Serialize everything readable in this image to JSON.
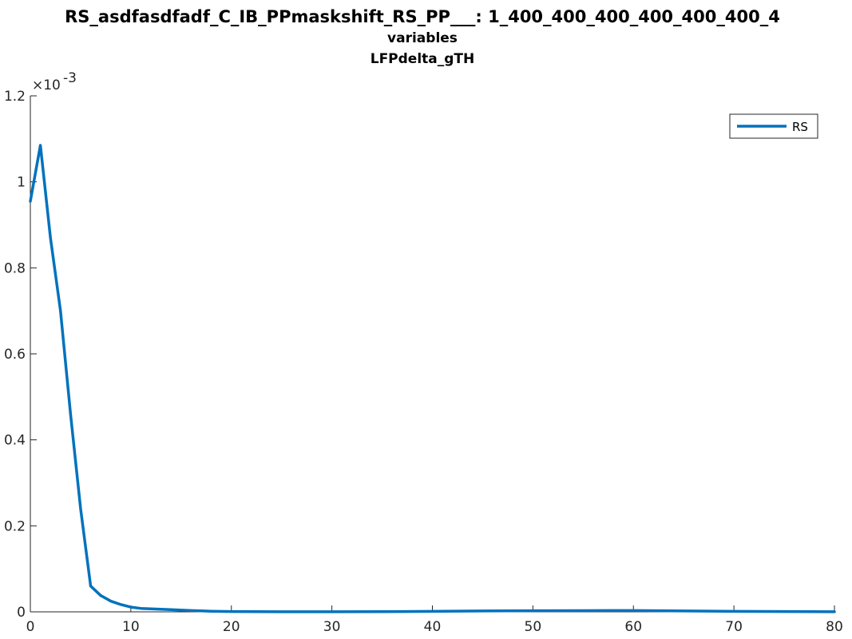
{
  "chart_data": {
    "type": "line",
    "title": [
      "RS_asdfasdfadf_C_IB_PPmaskshift_RS_PP___: 1_400_400_400_400_400_400_4",
      "variables",
      "LFPdelta_gTH"
    ],
    "xlabel": "",
    "ylabel": "",
    "xlim": [
      0,
      80
    ],
    "ylim": [
      0,
      0.0012
    ],
    "y_exponent_label": "×10",
    "y_exponent_power": "-3",
    "x_ticks": [
      0,
      10,
      20,
      30,
      40,
      50,
      60,
      70,
      80
    ],
    "x_tick_labels": [
      "0",
      "10",
      "20",
      "30",
      "40",
      "50",
      "60",
      "70",
      "80"
    ],
    "y_ticks": [
      0,
      0.0002,
      0.0004,
      0.0006,
      0.0008,
      0.001,
      0.0012
    ],
    "y_tick_labels": [
      "0",
      "0.2",
      "0.4",
      "0.6",
      "0.8",
      "1",
      "1.2"
    ],
    "grid": false,
    "legend_position": "top-right",
    "colors": {
      "line": "#0072BD",
      "axis": "#262626"
    },
    "series": [
      {
        "name": "RS",
        "x": [
          0,
          1,
          2,
          3,
          4,
          5,
          6,
          7,
          8,
          9,
          10,
          11,
          12,
          14,
          16,
          18,
          20,
          25,
          30,
          35,
          40,
          45,
          50,
          55,
          60,
          65,
          70,
          75,
          80
        ],
        "y": [
          0.000955,
          0.001085,
          0.00087,
          0.0007,
          0.00046,
          0.00024,
          6e-05,
          3.8e-05,
          2.5e-05,
          1.7e-05,
          1.1e-05,
          8e-06,
          7e-06,
          5e-06,
          3e-06,
          1.5e-06,
          8e-07,
          3e-07,
          2e-07,
          4e-07,
          1.2e-06,
          2e-06,
          2.5e-06,
          2.8e-06,
          3e-06,
          2.2e-06,
          1.2e-06,
          6e-07,
          3e-07
        ]
      }
    ]
  }
}
